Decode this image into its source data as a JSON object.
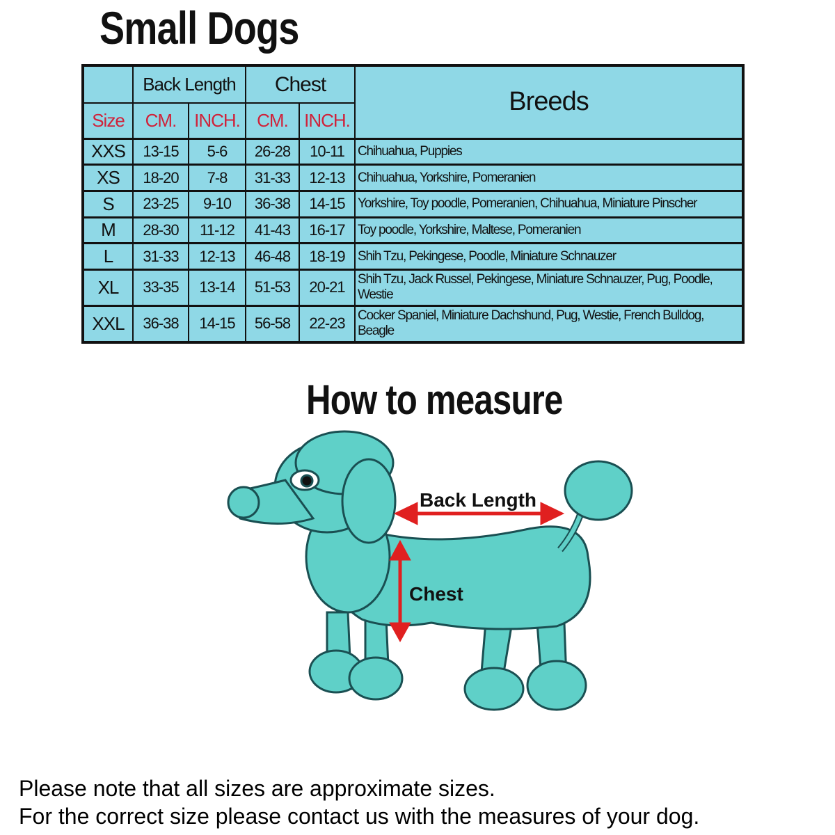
{
  "title": "Small Dogs",
  "table": {
    "group_headers": {
      "back_length": "Back Length",
      "chest": "Chest",
      "breeds": "Breeds"
    },
    "sub_headers": [
      "Size",
      "CM.",
      "INCH.",
      "CM.",
      "INCH."
    ],
    "rows": [
      {
        "size": "XXS",
        "back_cm": "13-15",
        "back_inch": "5-6",
        "chest_cm": "26-28",
        "chest_inch": "10-11",
        "breeds": "Chihuahua, Puppies"
      },
      {
        "size": "XS",
        "back_cm": "18-20",
        "back_inch": "7-8",
        "chest_cm": "31-33",
        "chest_inch": "12-13",
        "breeds": "Chihuahua, Yorkshire, Pomeranien"
      },
      {
        "size": "S",
        "back_cm": "23-25",
        "back_inch": "9-10",
        "chest_cm": "36-38",
        "chest_inch": "14-15",
        "breeds": "Yorkshire, Toy poodle, Pomeranien, Chihuahua, Miniature Pinscher"
      },
      {
        "size": "M",
        "back_cm": "28-30",
        "back_inch": "11-12",
        "chest_cm": "41-43",
        "chest_inch": "16-17",
        "breeds": "Toy poodle, Yorkshire, Maltese, Pomeranien"
      },
      {
        "size": "L",
        "back_cm": "31-33",
        "back_inch": "12-13",
        "chest_cm": "46-48",
        "chest_inch": "18-19",
        "breeds": "Shih Tzu, Pekingese, Poodle, Miniature Schnauzer"
      },
      {
        "size": "XL",
        "back_cm": "33-35",
        "back_inch": "13-14",
        "chest_cm": "51-53",
        "chest_inch": "20-21",
        "breeds": "Shih Tzu, Jack Russel, Pekingese, Miniature Schnauzer, Pug, Poodle, Westie"
      },
      {
        "size": "XXL",
        "back_cm": "36-38",
        "back_inch": "14-15",
        "chest_cm": "56-58",
        "chest_inch": "22-23",
        "breeds": "Cocker Spaniel, Miniature Dachshund, Pug, Westie, French Bulldog, Beagle"
      }
    ]
  },
  "measure": {
    "title": "How to measure",
    "back_length_label": "Back Length",
    "chest_label": "Chest"
  },
  "notes": [
    "Please note that all sizes are approximate sizes.",
    "For the correct size please contact us with the measures of your dog."
  ],
  "colors": {
    "table_bg": "#8fd8e6",
    "header_red": "#d0223a",
    "dog": "#5fd0c8",
    "arrow": "#e02020"
  }
}
